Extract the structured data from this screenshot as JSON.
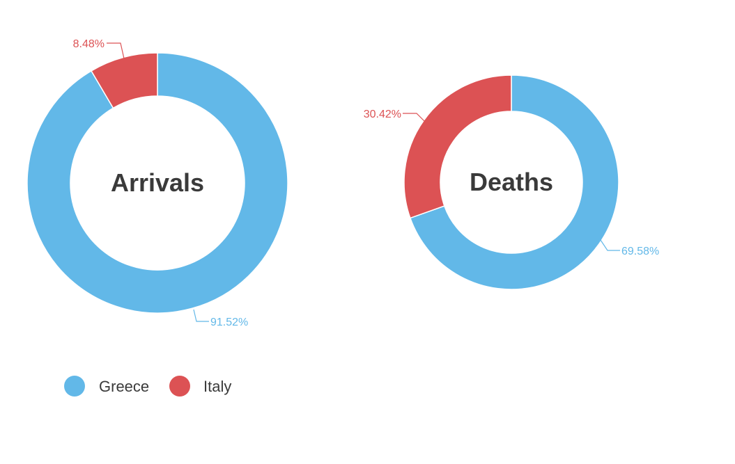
{
  "chart_data": [
    {
      "type": "pie",
      "title": "Arrivals",
      "categories": [
        "Greece",
        "Italy"
      ],
      "values": [
        91.52,
        8.48
      ],
      "labels": [
        "91.52%",
        "8.48%"
      ]
    },
    {
      "type": "pie",
      "title": "Deaths",
      "categories": [
        "Greece",
        "Italy"
      ],
      "values": [
        69.58,
        30.42
      ],
      "labels": [
        "69.58%",
        "30.42%"
      ]
    }
  ],
  "legend": {
    "placement": "bottom-left",
    "items": [
      {
        "label": "Greece",
        "color": "#62b8e8"
      },
      {
        "label": "Italy",
        "color": "#dc5254"
      }
    ]
  },
  "colors": {
    "Greece": "#62b8e8",
    "Italy": "#dc5254"
  }
}
